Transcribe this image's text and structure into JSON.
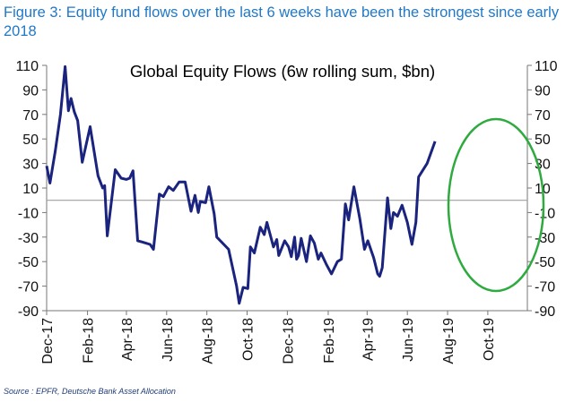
{
  "figure_title": "Figure 3: Equity fund flows over the last 6 weeks have been the strongest since early 2018",
  "source": "Source : EPFR, Deutsche Bank Asset Allocation",
  "colors": {
    "title": "#1f78c8",
    "line": "#1a237e",
    "highlight": "#2eaa3f",
    "zero": "#a0a0a0"
  },
  "chart_data": {
    "type": "line",
    "title": "Global Equity Flows (6w rolling sum, $bn)",
    "xlabel": "",
    "ylabel": "",
    "ylim": [
      -90,
      110
    ],
    "yticks": [
      110,
      90,
      70,
      50,
      30,
      10,
      -10,
      -30,
      -50,
      -70,
      -90
    ],
    "ytick_labels": [
      "110",
      "90",
      "70",
      "50",
      "30",
      "10",
      "-10",
      "-30",
      "-50",
      "-70",
      "-90"
    ],
    "right_axis": "mirror",
    "xrange": [
      "2017-12-01",
      "2019-11-30"
    ],
    "xticks": [
      {
        "date": "2017-12-01",
        "label": "Dec-17"
      },
      {
        "date": "2018-02-01",
        "label": "Feb-18"
      },
      {
        "date": "2018-04-01",
        "label": "Apr-18"
      },
      {
        "date": "2018-06-01",
        "label": "Jun-18"
      },
      {
        "date": "2018-08-01",
        "label": "Aug-18"
      },
      {
        "date": "2018-10-01",
        "label": "Oct-18"
      },
      {
        "date": "2018-12-01",
        "label": "Dec-18"
      },
      {
        "date": "2019-02-01",
        "label": "Feb-19"
      },
      {
        "date": "2019-04-01",
        "label": "Apr-19"
      },
      {
        "date": "2019-06-01",
        "label": "Jun-19"
      },
      {
        "date": "2019-08-01",
        "label": "Aug-19"
      },
      {
        "date": "2019-10-01",
        "label": "Oct-19"
      }
    ],
    "zero_line": true,
    "grid": false,
    "legend": "none",
    "annotation": "green ellipse highlighting the most recent surge (Aug-19 to Nov-19)",
    "series": [
      {
        "points": [
          [
            "2017-12-01",
            28
          ],
          [
            "2017-12-06",
            14
          ],
          [
            "2017-12-14",
            40
          ],
          [
            "2017-12-22",
            70
          ],
          [
            "2017-12-29",
            109
          ],
          [
            "2018-01-03",
            73
          ],
          [
            "2018-01-07",
            83
          ],
          [
            "2018-01-12",
            72
          ],
          [
            "2018-01-17",
            65
          ],
          [
            "2018-01-24",
            31
          ],
          [
            "2018-02-05",
            60
          ],
          [
            "2018-02-17",
            20
          ],
          [
            "2018-02-24",
            10
          ],
          [
            "2018-02-27",
            12
          ],
          [
            "2018-03-03",
            -29
          ],
          [
            "2018-03-15",
            25
          ],
          [
            "2018-03-24",
            18
          ],
          [
            "2018-04-01",
            17
          ],
          [
            "2018-04-06",
            18
          ],
          [
            "2018-04-11",
            24
          ],
          [
            "2018-04-18",
            -33
          ],
          [
            "2018-04-25",
            -34
          ],
          [
            "2018-05-07",
            -36
          ],
          [
            "2018-05-12",
            -40
          ],
          [
            "2018-05-21",
            5
          ],
          [
            "2018-05-27",
            3
          ],
          [
            "2018-06-04",
            11
          ],
          [
            "2018-06-11",
            8
          ],
          [
            "2018-06-20",
            15
          ],
          [
            "2018-06-29",
            15
          ],
          [
            "2018-07-08",
            -9
          ],
          [
            "2018-07-14",
            4
          ],
          [
            "2018-07-19",
            -10
          ],
          [
            "2018-07-22",
            -1
          ],
          [
            "2018-07-30",
            -2
          ],
          [
            "2018-08-04",
            11
          ],
          [
            "2018-08-12",
            -11
          ],
          [
            "2018-08-16",
            -30
          ],
          [
            "2018-09-03",
            -40
          ],
          [
            "2018-09-15",
            -70
          ],
          [
            "2018-09-19",
            -84
          ],
          [
            "2018-09-25",
            -71
          ],
          [
            "2018-10-02",
            -72
          ],
          [
            "2018-10-06",
            -38
          ],
          [
            "2018-10-12",
            -43
          ],
          [
            "2018-10-21",
            -22
          ],
          [
            "2018-10-27",
            -28
          ],
          [
            "2018-10-31",
            -18
          ],
          [
            "2018-11-10",
            -38
          ],
          [
            "2018-11-15",
            -32
          ],
          [
            "2018-11-18",
            -45
          ],
          [
            "2018-11-27",
            -33
          ],
          [
            "2018-12-03",
            -38
          ],
          [
            "2018-12-07",
            -46
          ],
          [
            "2018-12-12",
            -30
          ],
          [
            "2018-12-15",
            -48
          ],
          [
            "2018-12-18",
            -45
          ],
          [
            "2018-12-22",
            -31
          ],
          [
            "2018-12-30",
            -50
          ],
          [
            "2019-01-05",
            -29
          ],
          [
            "2019-01-11",
            -35
          ],
          [
            "2019-01-17",
            -48
          ],
          [
            "2019-01-21",
            -43
          ],
          [
            "2019-01-29",
            -52
          ],
          [
            "2019-02-06",
            -60
          ],
          [
            "2019-02-15",
            -50
          ],
          [
            "2019-02-21",
            -48
          ],
          [
            "2019-02-27",
            -3
          ],
          [
            "2019-03-04",
            -16
          ],
          [
            "2019-03-12",
            11
          ],
          [
            "2019-03-21",
            -15
          ],
          [
            "2019-03-28",
            -40
          ],
          [
            "2019-04-02",
            -33
          ],
          [
            "2019-04-11",
            -47
          ],
          [
            "2019-04-17",
            -60
          ],
          [
            "2019-04-20",
            -62
          ],
          [
            "2019-04-24",
            -55
          ],
          [
            "2019-05-02",
            2
          ],
          [
            "2019-05-07",
            -23
          ],
          [
            "2019-05-11",
            -10
          ],
          [
            "2019-05-17",
            -13
          ],
          [
            "2019-05-24",
            -4
          ],
          [
            "2019-06-01",
            -18
          ],
          [
            "2019-06-08",
            -36
          ],
          [
            "2019-06-14",
            -18
          ],
          [
            "2019-06-18",
            19
          ],
          [
            "2019-07-01",
            30
          ],
          [
            "2019-07-13",
            48
          ]
        ]
      }
    ]
  }
}
